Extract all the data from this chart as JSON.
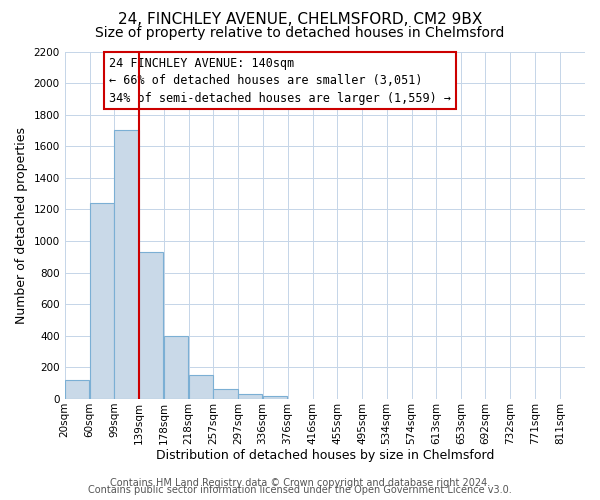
{
  "title": "24, FINCHLEY AVENUE, CHELMSFORD, CM2 9BX",
  "subtitle": "Size of property relative to detached houses in Chelmsford",
  "xlabel": "Distribution of detached houses by size in Chelmsford",
  "ylabel": "Number of detached properties",
  "bar_left_edges": [
    20,
    60,
    99,
    139,
    178,
    218,
    257,
    297,
    336,
    376,
    416,
    455,
    495,
    534,
    574,
    613,
    653,
    692,
    732,
    771
  ],
  "bar_widths": [
    39,
    39,
    40,
    39,
    40,
    39,
    40,
    39,
    40,
    39,
    40,
    39,
    40,
    39,
    40,
    39,
    40,
    39,
    40,
    40
  ],
  "bar_heights": [
    120,
    1240,
    1700,
    930,
    400,
    150,
    65,
    30,
    20,
    0,
    0,
    0,
    0,
    0,
    0,
    0,
    0,
    0,
    0,
    0
  ],
  "bar_color": "#c9d9e8",
  "bar_edge_color": "#7bafd4",
  "x_tick_labels": [
    "20sqm",
    "60sqm",
    "99sqm",
    "139sqm",
    "178sqm",
    "218sqm",
    "257sqm",
    "297sqm",
    "336sqm",
    "376sqm",
    "416sqm",
    "455sqm",
    "495sqm",
    "534sqm",
    "574sqm",
    "613sqm",
    "653sqm",
    "692sqm",
    "732sqm",
    "771sqm",
    "811sqm"
  ],
  "x_tick_positions": [
    20,
    60,
    99,
    139,
    178,
    218,
    257,
    297,
    336,
    376,
    416,
    455,
    495,
    534,
    574,
    613,
    653,
    692,
    732,
    771,
    811
  ],
  "y_tick_positions": [
    0,
    200,
    400,
    600,
    800,
    1000,
    1200,
    1400,
    1600,
    1800,
    2000,
    2200
  ],
  "ylim": [
    0,
    2200
  ],
  "xlim": [
    20,
    851
  ],
  "vline_x": 139,
  "vline_color": "#cc0000",
  "annotation_line1": "24 FINCHLEY AVENUE: 140sqm",
  "annotation_line2": "← 66% of detached houses are smaller (3,051)",
  "annotation_line3": "34% of semi-detached houses are larger (1,559) →",
  "box_edge_color": "#cc0000",
  "footer_line1": "Contains HM Land Registry data © Crown copyright and database right 2024.",
  "footer_line2": "Contains public sector information licensed under the Open Government Licence v3.0.",
  "background_color": "#ffffff",
  "grid_color": "#c5d5e8",
  "title_fontsize": 11,
  "subtitle_fontsize": 10,
  "axis_label_fontsize": 9,
  "tick_fontsize": 7.5,
  "annotation_fontsize": 8.5,
  "footer_fontsize": 7
}
